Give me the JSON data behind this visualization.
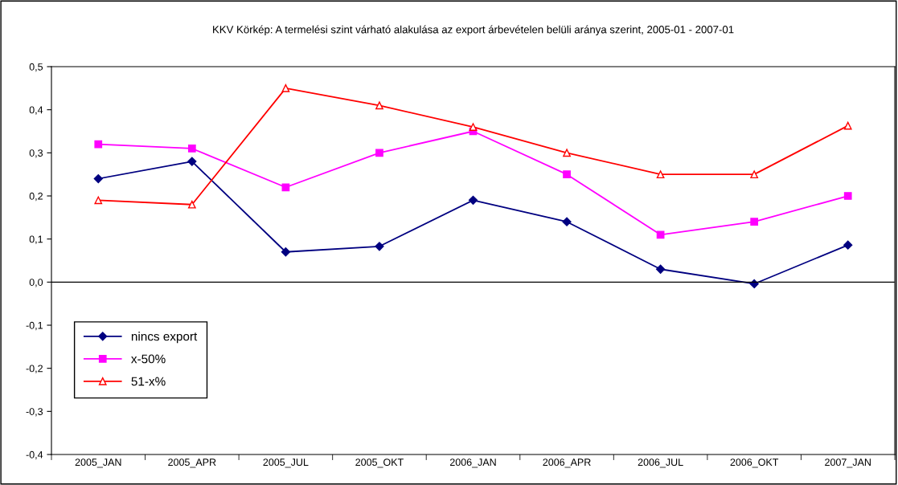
{
  "chart_data": {
    "type": "line",
    "title": "KKV Körkép: A termelési szint várható alakulása az export árbevételen belüli aránya szerint, 2005-01 - 2007-01",
    "categories": [
      "2005_JAN",
      "2005_APR",
      "2005_JUL",
      "2005_OKT",
      "2006_JAN",
      "2006_APR",
      "2006_JUL",
      "2006_OKT",
      "2007_JAN"
    ],
    "series": [
      {
        "name": "nincs export",
        "color": "#000080",
        "marker": "diamond",
        "values": [
          0.24,
          0.28,
          0.07,
          0.083,
          0.19,
          0.14,
          0.03,
          -0.004,
          0.086
        ]
      },
      {
        "name": "x-50%",
        "color": "#ff00ff",
        "marker": "square",
        "values": [
          0.32,
          0.31,
          0.22,
          0.3,
          0.35,
          0.25,
          0.11,
          0.14,
          0.2
        ]
      },
      {
        "name": "51-x%",
        "color": "#ff0000",
        "marker": "triangle",
        "values": [
          0.19,
          0.18,
          0.45,
          0.41,
          0.36,
          0.3,
          0.25,
          0.25,
          0.363
        ]
      }
    ],
    "ylim": [
      -0.4,
      0.5
    ],
    "yticks": [
      {
        "value": -0.4,
        "label": "-0,4"
      },
      {
        "value": -0.3,
        "label": "-0,3"
      },
      {
        "value": -0.2,
        "label": "-0,2"
      },
      {
        "value": -0.1,
        "label": "-0,1"
      },
      {
        "value": 0,
        "label": "0,0"
      },
      {
        "value": 0.1,
        "label": "0,1"
      },
      {
        "value": 0.2,
        "label": "0,2"
      },
      {
        "value": 0.3,
        "label": "0,3"
      },
      {
        "value": 0.4,
        "label": "0,4"
      },
      {
        "value": 0.5,
        "label": "0,5"
      }
    ],
    "grid": false,
    "ref_lines": [
      {
        "axis": "y",
        "value": 0,
        "color": "#000000",
        "line_style": "solid"
      }
    ],
    "legend": "bottom left",
    "line_style": "solid"
  }
}
